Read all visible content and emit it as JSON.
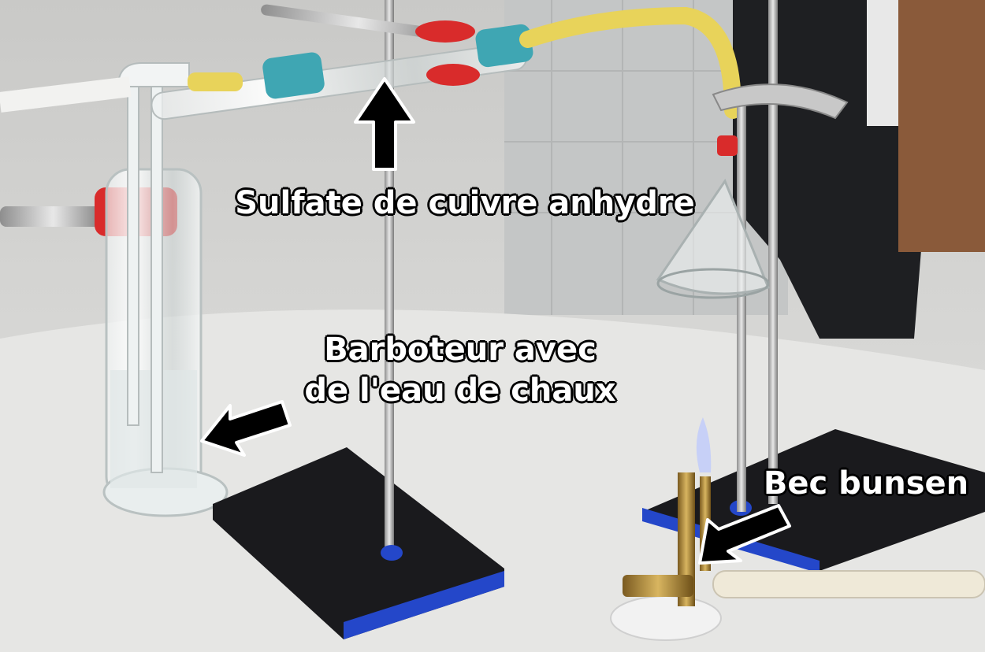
{
  "labels": {
    "sulfate": "Sulfate de cuivre anhydre",
    "barboteur_line1": "Barboteur avec",
    "barboteur_line2": "de l'eau de chaux",
    "bunsen": "Bec bunsen"
  },
  "colors": {
    "background": "#d9d9d7",
    "stand_base": "#1a1a1d",
    "stand_edge": "#2447c9",
    "tube_yellow": "#e8d35a",
    "stopper_teal": "#3fa6b3",
    "clamp_red": "#d92b2b",
    "arrow": "#000000",
    "arrow_outline": "#ffffff"
  }
}
